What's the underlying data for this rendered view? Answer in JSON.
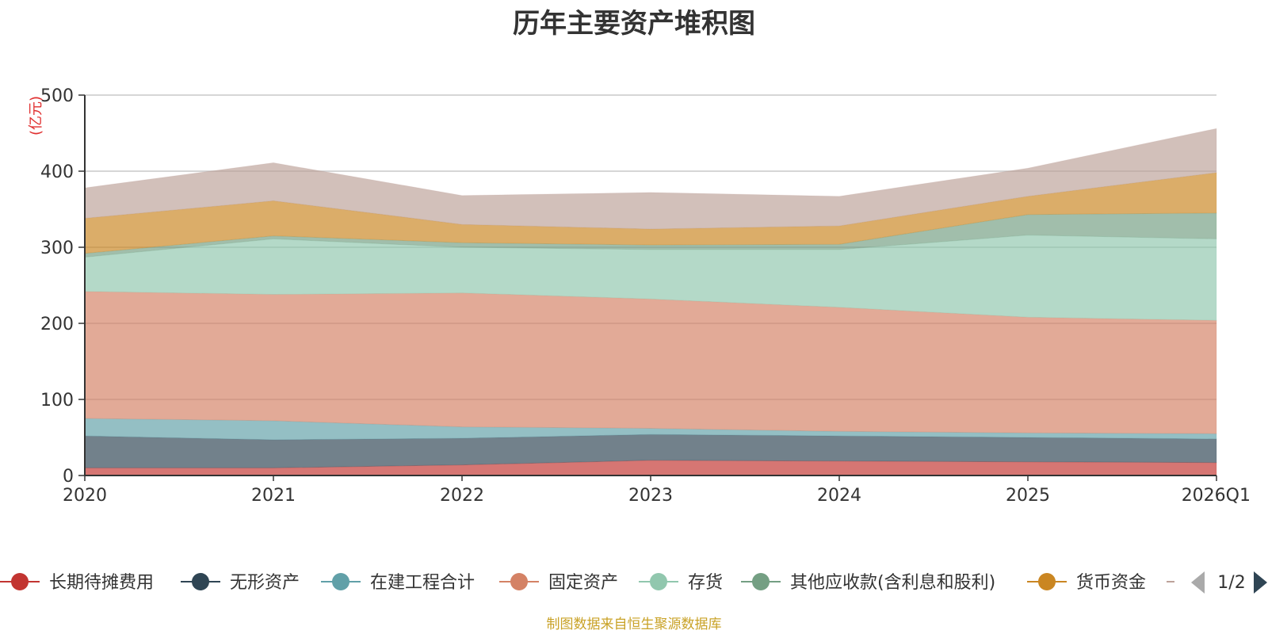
{
  "chart_data": {
    "type": "area",
    "stacked": true,
    "title": "历年主要资产堆积图",
    "ylabel": "(亿元)",
    "xlabel": "",
    "ylim": [
      0,
      500
    ],
    "yticks": [
      0,
      100,
      200,
      300,
      400,
      500
    ],
    "x": [
      "2020",
      "2021",
      "2022",
      "2023",
      "2024",
      "2025",
      "2026Q1"
    ],
    "grid": true,
    "legend_position": "bottom",
    "legend_page": "1/2",
    "series": [
      {
        "name": "长期待摊费用",
        "color": "#c23531",
        "values": [
          10,
          10,
          14,
          20,
          19,
          18,
          17
        ]
      },
      {
        "name": "无形资产",
        "color": "#2f4554",
        "values": [
          42,
          37,
          35,
          34,
          33,
          32,
          31
        ]
      },
      {
        "name": "在建工程合计",
        "color": "#61a0a8",
        "values": [
          23,
          25,
          15,
          8,
          6,
          6,
          7
        ]
      },
      {
        "name": "固定资产",
        "color": "#d48265",
        "values": [
          167,
          166,
          176,
          170,
          163,
          152,
          149
        ]
      },
      {
        "name": "存货",
        "color": "#91c7ae",
        "values": [
          45,
          73,
          60,
          65,
          76,
          108,
          107
        ]
      },
      {
        "name": "其他应收款(含利息和股利)",
        "color": "#749f83",
        "values": [
          5,
          4,
          6,
          6,
          7,
          27,
          34
        ]
      },
      {
        "name": "货币资金",
        "color": "#ca8622",
        "values": [
          46,
          46,
          24,
          21,
          24,
          24,
          53
        ]
      },
      {
        "name": "",
        "color": "#bda29a",
        "values": [
          40,
          50,
          38,
          48,
          39,
          37,
          58
        ]
      }
    ]
  },
  "footer": {
    "source": "制图数据来自恒生聚源数据库"
  }
}
